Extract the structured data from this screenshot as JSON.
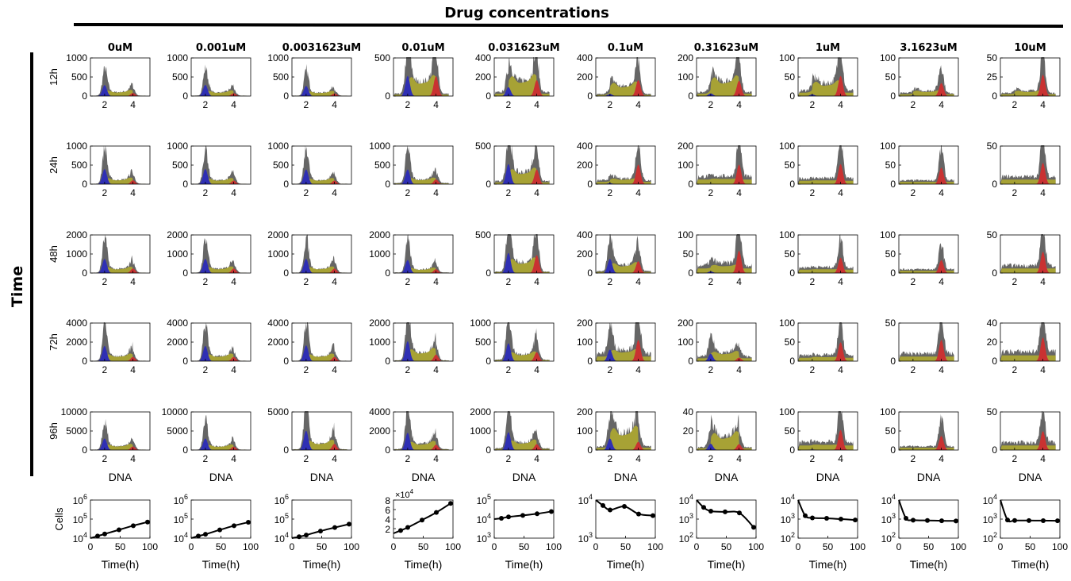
{
  "header": {
    "title": "Drug concentrations",
    "side_label": "Time"
  },
  "chart_data": {
    "type": "histogram-grid",
    "title": "Drug concentrations",
    "row_axis_label": "Time",
    "columns": [
      "0uM",
      "0.001uM",
      "0.0031623uM",
      "0.01uM",
      "0.031623uM",
      "0.1uM",
      "0.31623uM",
      "1uM",
      "3.1623uM",
      "10uM"
    ],
    "rows": [
      "12h",
      "24h",
      "48h",
      "72h",
      "96h"
    ],
    "xlabel": "DNA",
    "x_ticks": [
      2,
      4
    ],
    "xlim": [
      1,
      5.2
    ],
    "grid": false,
    "phase_colors": {
      "total": "#666666",
      "G1": "#2f2fb4",
      "S": "#a7a235",
      "G2M": "#c93232"
    },
    "ylims": [
      [
        1000,
        1000,
        1000,
        500,
        400,
        400,
        200,
        100,
        100,
        50
      ],
      [
        1000,
        1000,
        1000,
        1000,
        500,
        400,
        200,
        100,
        100,
        50
      ],
      [
        2000,
        2000,
        2000,
        2000,
        500,
        400,
        100,
        100,
        100,
        50
      ],
      [
        4000,
        4000,
        4000,
        2000,
        1000,
        200,
        200,
        100,
        50,
        40
      ],
      [
        10000,
        10000,
        5000,
        4000,
        2000,
        200,
        40,
        100,
        100,
        50
      ]
    ],
    "yticks": [
      [
        [
          0,
          500,
          1000
        ],
        [
          0,
          500,
          1000
        ],
        [
          0,
          500,
          1000
        ],
        [
          0,
          500
        ],
        [
          0,
          200,
          400
        ],
        [
          0,
          200,
          400
        ],
        [
          0,
          100,
          200
        ],
        [
          0,
          50,
          100
        ],
        [
          0,
          50,
          100
        ],
        [
          0,
          25,
          50
        ]
      ],
      [
        [
          0,
          500,
          1000
        ],
        [
          0,
          500,
          1000
        ],
        [
          0,
          500,
          1000
        ],
        [
          0,
          500,
          1000
        ],
        [
          0,
          500
        ],
        [
          0,
          200,
          400
        ],
        [
          0,
          100,
          200
        ],
        [
          0,
          50,
          100
        ],
        [
          0,
          50,
          100
        ],
        [
          0,
          50
        ]
      ],
      [
        [
          0,
          1000,
          2000
        ],
        [
          0,
          1000,
          2000
        ],
        [
          0,
          1000,
          2000
        ],
        [
          0,
          1000,
          2000
        ],
        [
          0,
          500
        ],
        [
          0,
          200,
          400
        ],
        [
          0,
          50,
          100
        ],
        [
          0,
          50,
          100
        ],
        [
          0,
          50,
          100
        ],
        [
          0,
          50
        ]
      ],
      [
        [
          0,
          2000,
          4000
        ],
        [
          0,
          2000,
          4000
        ],
        [
          0,
          2000,
          4000
        ],
        [
          0,
          1000,
          2000
        ],
        [
          0,
          500,
          1000
        ],
        [
          0,
          100,
          200
        ],
        [
          0,
          100,
          200
        ],
        [
          0,
          50,
          100
        ],
        [
          0,
          50
        ],
        [
          0,
          20,
          40
        ]
      ],
      [
        [
          0,
          5000,
          10000
        ],
        [
          0,
          5000,
          10000
        ],
        [
          0,
          5000
        ],
        [
          0,
          2000,
          4000
        ],
        [
          0,
          1000,
          2000
        ],
        [
          0,
          100,
          200
        ],
        [
          0,
          20,
          40
        ],
        [
          0,
          50,
          100
        ],
        [
          0,
          50,
          100
        ],
        [
          0,
          50
        ]
      ]
    ],
    "peaks": [
      [
        [
          520,
          120,
          10,
          130
        ],
        [
          530,
          110,
          10,
          120
        ],
        [
          480,
          100,
          10,
          110
        ],
        [
          480,
          200,
          30,
          420
        ],
        [
          170,
          160,
          40,
          270
        ],
        [
          40,
          110,
          20,
          270
        ],
        [
          25,
          75,
          20,
          130
        ],
        [
          8,
          25,
          15,
          85
        ],
        [
          3,
          8,
          8,
          55
        ],
        [
          1,
          4,
          4,
          45
        ]
      ],
      [
        [
          720,
          130,
          10,
          160
        ],
        [
          720,
          120,
          10,
          150
        ],
        [
          700,
          120,
          10,
          150
        ],
        [
          700,
          120,
          30,
          200
        ],
        [
          480,
          150,
          40,
          310
        ],
        [
          20,
          30,
          40,
          330
        ],
        [
          3,
          4,
          40,
          165
        ],
        [
          1,
          1,
          15,
          85
        ],
        [
          0,
          0,
          10,
          70
        ],
        [
          0,
          0,
          10,
          45
        ]
      ],
      [
        [
          1350,
          250,
          20,
          380
        ],
        [
          1350,
          260,
          20,
          380
        ],
        [
          1350,
          260,
          20,
          380
        ],
        [
          1250,
          210,
          30,
          330
        ],
        [
          480,
          150,
          20,
          380
        ],
        [
          270,
          80,
          20,
          200
        ],
        [
          8,
          8,
          20,
          95
        ],
        [
          1,
          1,
          15,
          65
        ],
        [
          0,
          0,
          10,
          55
        ],
        [
          0,
          0,
          10,
          45
        ]
      ],
      [
        [
          2900,
          600,
          40,
          700
        ],
        [
          2900,
          600,
          40,
          700
        ],
        [
          3000,
          600,
          40,
          700
        ],
        [
          1900,
          520,
          40,
          550
        ],
        [
          850,
          180,
          40,
          380
        ],
        [
          110,
          30,
          40,
          180
        ],
        [
          70,
          30,
          25,
          30
        ],
        [
          1,
          2,
          15,
          80
        ],
        [
          0,
          0,
          10,
          45
        ],
        [
          0,
          0,
          10,
          40
        ]
      ],
      [
        [
          5500,
          1200,
          100,
          1500
        ],
        [
          5500,
          1100,
          100,
          1400
        ],
        [
          4600,
          1000,
          100,
          1300
        ],
        [
          3300,
          700,
          100,
          900
        ],
        [
          1700,
          380,
          100,
          500
        ],
        [
          110,
          90,
          20,
          70
        ],
        [
          12,
          14,
          3,
          10
        ],
        [
          3,
          2,
          20,
          85
        ],
        [
          0,
          0,
          10,
          60
        ],
        [
          0,
          0,
          10,
          40
        ]
      ]
    ],
    "growth": {
      "ylabel": "Cells",
      "xlabel": "Time(h)",
      "x_ticks": [
        0,
        50,
        100
      ],
      "x_points": [
        0,
        12,
        24,
        48,
        72,
        96
      ],
      "series": [
        {
          "scale": "log",
          "ylim": [
            10000,
            1000000
          ],
          "ytick_labels": [
            [
              "10",
              "4"
            ],
            [
              "10",
              "5"
            ],
            [
              "10",
              "6"
            ]
          ],
          "values": [
            10000,
            12800,
            16500,
            27500,
            45000,
            70000
          ]
        },
        {
          "scale": "log",
          "ylim": [
            10000,
            1000000
          ],
          "ytick_labels": [
            [
              "10",
              "4"
            ],
            [
              "10",
              "5"
            ],
            [
              "10",
              "6"
            ]
          ],
          "values": [
            10000,
            12800,
            16000,
            27000,
            45000,
            68000
          ]
        },
        {
          "scale": "log",
          "ylim": [
            10000,
            1000000
          ],
          "ytick_labels": [
            [
              "10",
              "4"
            ],
            [
              "10",
              "5"
            ],
            [
              "10",
              "6"
            ]
          ],
          "values": [
            10000,
            11800,
            14500,
            23500,
            36000,
            54000
          ]
        },
        {
          "scale": "linear",
          "ylim": [
            0,
            80000
          ],
          "ytick_labels": [
            [
              "2",
              ""
            ],
            [
              "4",
              ""
            ],
            [
              "6",
              ""
            ],
            [
              "8",
              ""
            ]
          ],
          "ytick_values": [
            20000,
            40000,
            60000,
            80000
          ],
          "exponent": "4",
          "values": [
            10000,
            16000,
            22500,
            38000,
            54000,
            73000
          ]
        },
        {
          "scale": "log",
          "ylim": [
            1000,
            100000
          ],
          "ytick_labels": [
            [
              "10",
              "3"
            ],
            [
              "10",
              "4"
            ],
            [
              "10",
              "5"
            ]
          ],
          "values": [
            10000,
            11000,
            13000,
            15500,
            19000,
            25000
          ]
        },
        {
          "scale": "log",
          "ylim": [
            1000,
            10000
          ],
          "ytick_labels": [
            [
              "10",
              "3"
            ],
            [
              "10",
              "4"
            ]
          ],
          "values": [
            10000,
            7200,
            5500,
            6800,
            4300,
            3900
          ]
        },
        {
          "scale": "log",
          "ylim": [
            100,
            10000
          ],
          "ytick_labels": [
            [
              "10",
              "2"
            ],
            [
              "10",
              "3"
            ],
            [
              "10",
              "4"
            ]
          ],
          "values": [
            10000,
            4100,
            2600,
            2400,
            2100,
            370
          ]
        },
        {
          "scale": "log",
          "ylim": [
            100,
            10000
          ],
          "ytick_labels": [
            [
              "10",
              "2"
            ],
            [
              "10",
              "3"
            ],
            [
              "10",
              "4"
            ]
          ],
          "values": [
            10000,
            1500,
            1150,
            1100,
            1000,
            900
          ]
        },
        {
          "scale": "log",
          "ylim": [
            100,
            10000
          ],
          "ytick_labels": [
            [
              "10",
              "2"
            ],
            [
              "10",
              "3"
            ],
            [
              "10",
              "4"
            ]
          ],
          "values": [
            10000,
            1100,
            880,
            850,
            820,
            800
          ]
        },
        {
          "scale": "log",
          "ylim": [
            100,
            10000
          ],
          "ytick_labels": [
            [
              "10",
              "2"
            ],
            [
              "10",
              "3"
            ],
            [
              "10",
              "4"
            ]
          ],
          "values": [
            10000,
            900,
            850,
            840,
            830,
            820
          ]
        }
      ]
    }
  }
}
